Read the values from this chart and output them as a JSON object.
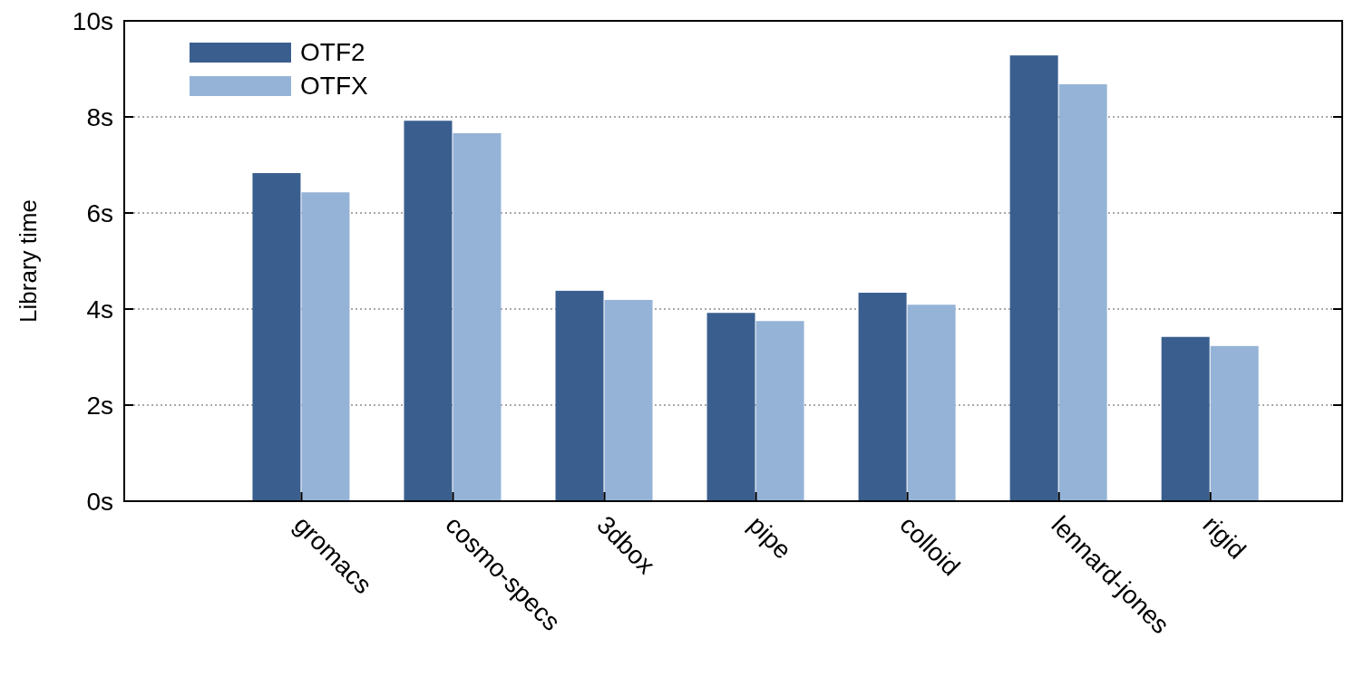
{
  "chart_data": {
    "type": "bar",
    "ylabel": "Library time",
    "categories": [
      "gromacs",
      "cosmo-specs",
      "3dbox",
      "pipe",
      "colloid",
      "lennard-jones",
      "rigid"
    ],
    "series": [
      {
        "name": "OTF2",
        "color": "#3a5f8f",
        "values": [
          6.83,
          7.92,
          4.38,
          3.92,
          4.34,
          9.28,
          3.42
        ]
      },
      {
        "name": "OTFX",
        "color": "#95b3d7",
        "values": [
          6.43,
          7.66,
          4.19,
          3.75,
          4.09,
          8.68,
          3.23
        ]
      }
    ],
    "ylim": [
      0,
      10
    ],
    "yticks": [
      {
        "value": 0,
        "label": "0s"
      },
      {
        "value": 2,
        "label": "2s"
      },
      {
        "value": 4,
        "label": "4s"
      },
      {
        "value": 6,
        "label": "6s"
      },
      {
        "value": 8,
        "label": "8s"
      },
      {
        "value": 10,
        "label": "10s"
      }
    ],
    "grid": "y",
    "legend": "top left"
  }
}
